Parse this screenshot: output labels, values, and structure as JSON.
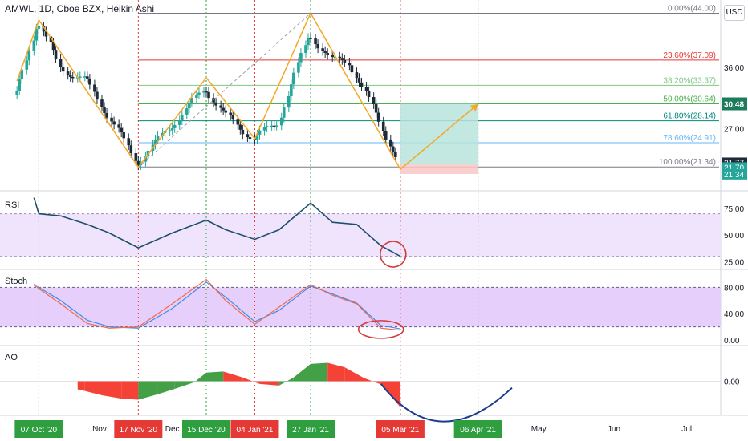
{
  "header": {
    "title": "AMWL, 1D, Cboe BZX, Heikin Ashi",
    "currency_button": "USD"
  },
  "colors": {
    "up": "#26a69a",
    "down": "#1e2a38",
    "rsi_line": "#1d4e6b",
    "rsi_band": "#efe4fb",
    "stoch_band": "#e7cffb",
    "stoch_k": "#f06a4a",
    "stoch_d": "#3f8ee8",
    "ao_up": "#43a047",
    "ao_down": "#f44336",
    "zigzag": "#f5a623",
    "annotation": "#d63a3a",
    "arc": "#1b3c8c",
    "target_zone": "#b7e4dc",
    "stop_zone": "#f8c8c6"
  },
  "chart_data": [
    {
      "type": "candlestick",
      "title": "AMWL, 1D, Cboe BZX, Heikin Ashi",
      "x": [
        "2020-09-28",
        "2020-10-07",
        "2020-10-16",
        "2020-10-27",
        "2020-11-05",
        "2020-11-17",
        "2020-11-30",
        "2020-12-15",
        "2020-12-23",
        "2021-01-04",
        "2021-01-14",
        "2021-01-27",
        "2021-02-05",
        "2021-02-12",
        "2021-02-25",
        "2021-03-05"
      ],
      "close": [
        32.0,
        43.0,
        36.0,
        34.0,
        29.0,
        22.0,
        27.0,
        33.0,
        29.0,
        25.5,
        28.0,
        41.0,
        37.0,
        37.0,
        28.0,
        21.8
      ],
      "current_price": "30.48",
      "price_labels": [
        "21.77",
        "21.70",
        "21.34"
      ],
      "ylim": [
        19.0,
        45.0
      ],
      "y_ticks": [
        "36.00",
        "27.00"
      ],
      "fibonacci": [
        {
          "label": "0.00%(44.00)",
          "price": 44.0,
          "color": "#787b86"
        },
        {
          "label": "23.60%(37.09)",
          "price": 37.09,
          "color": "#e53935"
        },
        {
          "label": "38.20%(33.37)",
          "price": 33.37,
          "color": "#81c784"
        },
        {
          "label": "50.00%(30.64)",
          "price": 30.64,
          "color": "#4caf50"
        },
        {
          "label": "61.80%(28.14)",
          "price": 28.14,
          "color": "#00897b"
        },
        {
          "label": "78.60%(24.91)",
          "price": 24.91,
          "color": "#64b5f6"
        },
        {
          "label": "100.00%(21.34)",
          "price": 21.34,
          "color": "#787b86"
        }
      ],
      "zigzag": [
        {
          "x": "2020-09-28",
          "y": 34.0
        },
        {
          "x": "2020-10-07",
          "y": 43.0
        },
        {
          "x": "2020-11-17",
          "y": 21.3
        },
        {
          "x": "2020-12-15",
          "y": 34.5
        },
        {
          "x": "2021-01-04",
          "y": 25.5
        },
        {
          "x": "2021-01-27",
          "y": 44.0
        },
        {
          "x": "2021-03-05",
          "y": 21.0
        },
        {
          "x": "2021-04-06",
          "y": 30.6
        }
      ],
      "projection": {
        "entry": 21.77,
        "target": 30.64,
        "stop": 20.3,
        "from": "2021-03-05",
        "to": "2021-04-06"
      }
    },
    {
      "type": "line",
      "name": "RSI",
      "y_ticks": [
        "75.00",
        "50.00",
        "25.00"
      ],
      "ylim": [
        20,
        90
      ],
      "bands": [
        30,
        70
      ],
      "x": [
        "2020-10-05",
        "2020-10-07",
        "2020-10-16",
        "2020-10-27",
        "2020-11-05",
        "2020-11-17",
        "2020-12-01",
        "2020-12-15",
        "2020-12-23",
        "2021-01-04",
        "2021-01-14",
        "2021-01-27",
        "2021-02-05",
        "2021-02-15",
        "2021-02-25",
        "2021-03-05"
      ],
      "values": [
        85,
        70,
        68,
        60,
        52,
        38,
        52,
        64,
        55,
        46,
        55,
        80,
        62,
        60,
        40,
        30
      ]
    },
    {
      "type": "line",
      "name": "Stoch",
      "y_ticks": [
        "80.00",
        "40.00",
        "0.00"
      ],
      "ylim": [
        0,
        100
      ],
      "bands": [
        20,
        80
      ],
      "x": [
        "2020-10-05",
        "2020-10-07",
        "2020-10-16",
        "2020-10-27",
        "2020-11-05",
        "2020-11-17",
        "2020-12-01",
        "2020-12-15",
        "2020-12-23",
        "2021-01-04",
        "2021-01-14",
        "2021-01-27",
        "2021-02-05",
        "2021-02-15",
        "2021-02-25",
        "2021-03-05"
      ],
      "k_values": [
        85,
        78,
        55,
        25,
        18,
        20,
        55,
        92,
        60,
        24,
        50,
        84,
        68,
        55,
        18,
        15
      ],
      "d_values": [
        83,
        80,
        60,
        30,
        20,
        18,
        48,
        88,
        65,
        28,
        45,
        82,
        70,
        56,
        22,
        17
      ]
    },
    {
      "type": "bar",
      "name": "AO",
      "y_ticks": [
        "0.00"
      ],
      "ylim": [
        -6,
        6
      ],
      "x": [
        "2020-10-23",
        "2020-10-26",
        "2020-11-02",
        "2020-11-10",
        "2020-11-17",
        "2020-11-25",
        "2020-12-02",
        "2020-12-10",
        "2020-12-15",
        "2020-12-22",
        "2020-12-30",
        "2021-01-06",
        "2021-01-14",
        "2021-01-20",
        "2021-01-27",
        "2021-02-03",
        "2021-02-10",
        "2021-02-18",
        "2021-02-25",
        "2021-03-05"
      ],
      "values": [
        -1.5,
        -1.8,
        -2.6,
        -3.2,
        -3.4,
        -2.4,
        -1.4,
        -0.2,
        1.6,
        1.8,
        0.7,
        -0.5,
        -0.8,
        0.7,
        3.2,
        3.4,
        2.6,
        0.6,
        -0.6,
        -4.8
      ]
    }
  ],
  "x_axis": [
    {
      "label": "07 Oct '20",
      "date": "2020-10-07",
      "style": "green"
    },
    {
      "label": "Nov",
      "date": "2020-11-01",
      "style": "plain"
    },
    {
      "label": "17 Nov '20",
      "date": "2020-11-17",
      "style": "red"
    },
    {
      "label": "Dec",
      "date": "2020-12-01",
      "style": "plain"
    },
    {
      "label": "15 Dec '20",
      "date": "2020-12-15",
      "style": "green"
    },
    {
      "label": "04 Jan '21",
      "date": "2021-01-04",
      "style": "red"
    },
    {
      "label": "27 Jan '21",
      "date": "2021-01-27",
      "style": "green"
    },
    {
      "label": "05 Mar '21",
      "date": "2021-03-05",
      "style": "red"
    },
    {
      "label": "06 Apr '21",
      "date": "2021-04-06",
      "style": "green"
    },
    {
      "label": "May",
      "date": "2021-05-01",
      "style": "plain"
    },
    {
      "label": "Jun",
      "date": "2021-06-01",
      "style": "plain"
    },
    {
      "label": "Jul",
      "date": "2021-07-01",
      "style": "plain"
    }
  ],
  "panes": {
    "rsi_label": "RSI",
    "stoch_label": "Stoch",
    "ao_label": "AO"
  }
}
